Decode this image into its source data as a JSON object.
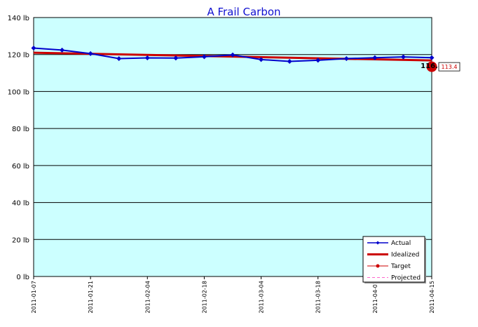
{
  "chart_data": {
    "type": "line",
    "title": "A Frail Carbon",
    "xlabel": "",
    "ylabel": "",
    "y_unit": "lb",
    "ylim": [
      0,
      140
    ],
    "yticks": [
      "0 lb",
      "20 lb",
      "40 lb",
      "60 lb",
      "80 lb",
      "100 lb",
      "120 lb",
      "140 lb"
    ],
    "xlim": [
      "2011-01-07",
      "2011-04-15"
    ],
    "xticks": [
      "2011-01-07",
      "2011-01-21",
      "2011-02-04",
      "2011-02-18",
      "2011-03-04",
      "2011-03-18",
      "2011-04-01",
      "2011-04-15"
    ],
    "grid": true,
    "legend_position": "bottom-right",
    "series": [
      {
        "name": "Actual",
        "color": "#0000cc",
        "x": [
          "2011-01-07",
          "2011-01-14",
          "2011-01-21",
          "2011-01-28",
          "2011-02-04",
          "2011-02-11",
          "2011-02-18",
          "2011-02-25",
          "2011-03-04",
          "2011-03-11",
          "2011-03-18",
          "2011-03-25",
          "2011-04-01",
          "2011-04-08",
          "2011-04-15"
        ],
        "values": [
          123.5,
          122.4,
          120.5,
          117.8,
          118.2,
          118.1,
          118.8,
          119.8,
          117.3,
          116.3,
          116.9,
          117.8,
          118.3,
          118.7,
          118.3
        ]
      },
      {
        "name": "Idealized",
        "color": "#cc0000",
        "x": [
          "2011-01-07",
          "2011-04-15"
        ],
        "values": [
          121.0,
          116.8
        ]
      },
      {
        "name": "Target",
        "color": "#cc0000",
        "x": [
          "2011-04-15"
        ],
        "values": [
          113.4
        ]
      },
      {
        "name": "Projected",
        "color": "#ff66cc",
        "x": [],
        "values": []
      }
    ],
    "annotations": [
      {
        "text": "116.8",
        "x": "2011-04-15",
        "y": 116.8,
        "color": "#000000"
      },
      {
        "text": "113.4",
        "x": "2011-04-15",
        "y": 113.4,
        "color": "#cc0000"
      }
    ],
    "colors": {
      "plot_background": "#ccffff",
      "grid": "#000000",
      "title": "#1010d0"
    }
  }
}
